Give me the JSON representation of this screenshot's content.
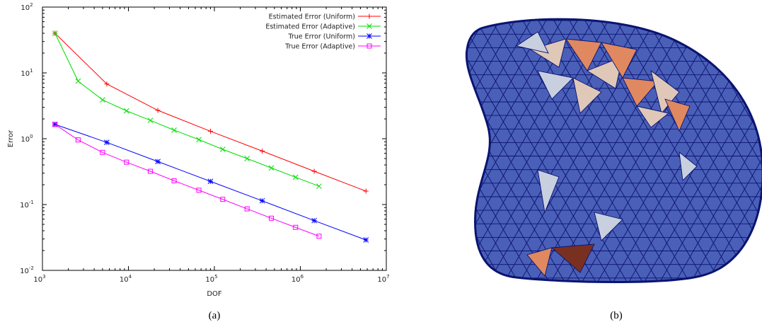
{
  "chart_data": {
    "type": "line",
    "xscale": "log",
    "yscale": "log",
    "xlim": [
      1000,
      10000000
    ],
    "ylim": [
      0.01,
      100
    ],
    "xlabel": "DOF",
    "ylabel": "Error",
    "grid": false,
    "legend_position": "top-right",
    "x_ticks": [
      {
        "base": "10",
        "exp": "3"
      },
      {
        "base": "10",
        "exp": "4"
      },
      {
        "base": "10",
        "exp": "5"
      },
      {
        "base": "10",
        "exp": "6"
      },
      {
        "base": "10",
        "exp": "7"
      }
    ],
    "y_ticks": [
      {
        "base": "10",
        "exp": "-2"
      },
      {
        "base": "10",
        "exp": "-1"
      },
      {
        "base": "10",
        "exp": "0"
      },
      {
        "base": "10",
        "exp": "1"
      },
      {
        "base": "10",
        "exp": "2"
      }
    ],
    "series": [
      {
        "name": "Estimated Error (Uniform)",
        "color": "#ff0000",
        "marker": "plus",
        "x": [
          1400,
          5600,
          22000,
          90000,
          360000,
          1450000,
          5800000
        ],
        "y": [
          40,
          6.8,
          2.7,
          1.3,
          0.65,
          0.32,
          0.16
        ]
      },
      {
        "name": "Estimated Error (Adaptive)",
        "color": "#00dd00",
        "marker": "cross",
        "x": [
          1400,
          2600,
          5000,
          9500,
          18000,
          34000,
          66000,
          125000,
          240000,
          460000,
          880000,
          1650000
        ],
        "y": [
          40,
          7.5,
          3.9,
          2.65,
          1.9,
          1.35,
          0.97,
          0.69,
          0.5,
          0.36,
          0.26,
          0.19
        ]
      },
      {
        "name": "True Error (Uniform)",
        "color": "#0000ff",
        "marker": "star",
        "x": [
          1400,
          5600,
          22000,
          90000,
          360000,
          1450000,
          5800000
        ],
        "y": [
          1.65,
          0.88,
          0.45,
          0.225,
          0.114,
          0.057,
          0.029
        ]
      },
      {
        "name": "True Error (Adaptive)",
        "color": "#ff00ff",
        "marker": "square",
        "x": [
          1400,
          2600,
          5000,
          9500,
          18000,
          34000,
          66000,
          125000,
          240000,
          460000,
          880000,
          1650000
        ],
        "y": [
          1.65,
          0.96,
          0.62,
          0.44,
          0.32,
          0.23,
          0.165,
          0.12,
          0.086,
          0.062,
          0.045,
          0.033
        ]
      }
    ]
  },
  "captions": {
    "a": "(a)",
    "b": "(b)"
  },
  "mesh": {
    "base_color": "#4a5fb8",
    "edge_color": "#0a1470",
    "patch_colors": [
      "#e0c8b8",
      "#e08860",
      "#c8d0e0",
      "#7a3020"
    ]
  }
}
